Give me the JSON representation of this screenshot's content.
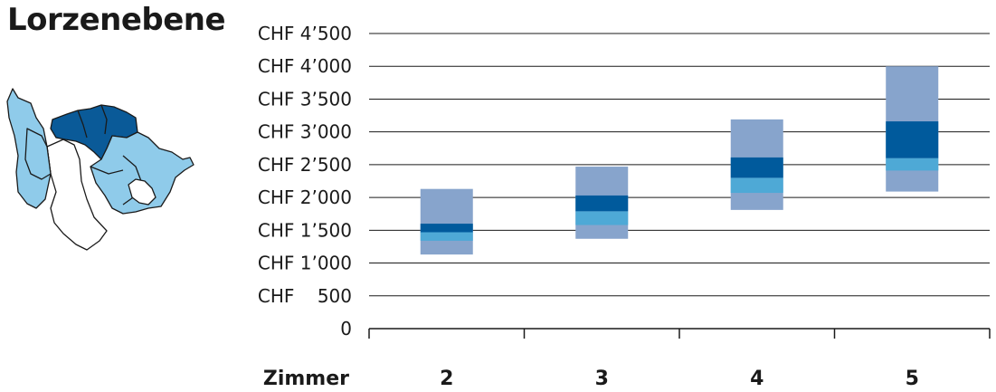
{
  "region": {
    "title": "Lorzenebene"
  },
  "colors": {
    "outer_range": "#87a4cc",
    "inner_light": "#4ea9d6",
    "inner_dark": "#005a9c",
    "map_highlight": "#0a5a98",
    "map_neighbor": "#8fcbea",
    "map_other": "#ffffff",
    "grid": "#1a1a1a"
  },
  "map": {
    "icon": "canton-map-icon",
    "highlighted_region": "Lorzenebene"
  },
  "chart_data": {
    "type": "box",
    "title": "",
    "xlabel": "Zimmer",
    "ylabel": "",
    "ylim": [
      0,
      4500
    ],
    "yticks": [
      {
        "value": 0,
        "label": "0"
      },
      {
        "value": 500,
        "label": "CHF    500"
      },
      {
        "value": 1000,
        "label": "CHF 1’000"
      },
      {
        "value": 1500,
        "label": "CHF 1’500"
      },
      {
        "value": 2000,
        "label": "CHF 2’000"
      },
      {
        "value": 2500,
        "label": "CHF 2’500"
      },
      {
        "value": 3000,
        "label": "CHF 3’000"
      },
      {
        "value": 3500,
        "label": "CHF 3’500"
      },
      {
        "value": 4000,
        "label": "CHF 4’000"
      },
      {
        "value": 4500,
        "label": "CHF 4’500"
      }
    ],
    "grid": true,
    "categories": [
      "2",
      "3",
      "4",
      "5"
    ],
    "boxes": [
      {
        "category": "2",
        "low": 1130,
        "q1": 1340,
        "median": 1470,
        "q3": 1600,
        "high": 2130
      },
      {
        "category": "3",
        "low": 1370,
        "q1": 1580,
        "median": 1790,
        "q3": 2030,
        "high": 2470
      },
      {
        "category": "4",
        "low": 1810,
        "q1": 2070,
        "median": 2300,
        "q3": 2610,
        "high": 3190
      },
      {
        "category": "5",
        "low": 2090,
        "q1": 2410,
        "median": 2600,
        "q3": 3160,
        "high": 4000
      }
    ]
  }
}
